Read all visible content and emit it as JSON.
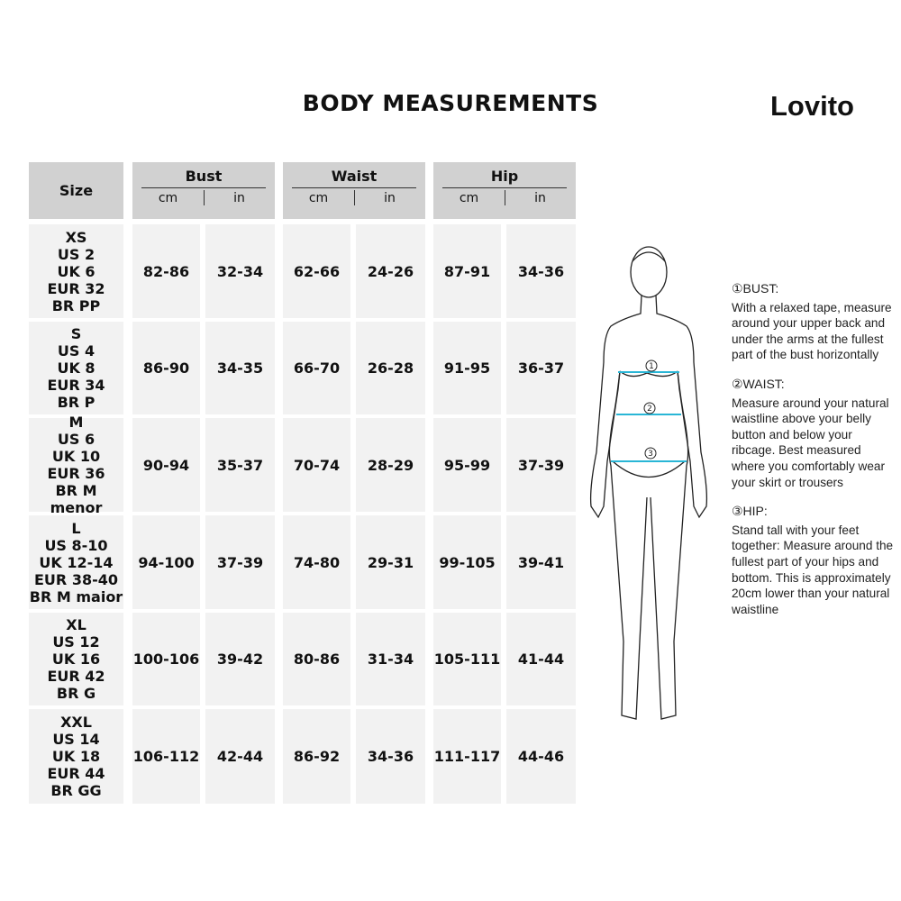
{
  "title": "BODY MEASUREMENTS",
  "brand": "Lovito",
  "headers": {
    "size": "Size",
    "groups": [
      "Bust",
      "Waist",
      "Hip"
    ],
    "units": [
      "cm",
      "in"
    ]
  },
  "rows": [
    {
      "size": [
        "XS",
        "US 2",
        "UK 6",
        "EUR 32",
        "BR PP"
      ],
      "values": [
        "82-86",
        "32-34",
        "62-66",
        "24-26",
        "87-91",
        "34-36"
      ]
    },
    {
      "size": [
        "S",
        "US 4",
        "UK 8",
        "EUR 34",
        "BR P"
      ],
      "values": [
        "86-90",
        "34-35",
        "66-70",
        "26-28",
        "91-95",
        "36-37"
      ]
    },
    {
      "size": [
        "M",
        "US 6",
        "UK 10",
        "EUR 36",
        "BR M menor"
      ],
      "values": [
        "90-94",
        "35-37",
        "70-74",
        "28-29",
        "95-99",
        "37-39"
      ]
    },
    {
      "size": [
        "L",
        "US 8-10",
        "UK 12-14",
        "EUR 38-40",
        "BR M maior"
      ],
      "values": [
        "94-100",
        "37-39",
        "74-80",
        "29-31",
        "99-105",
        "39-41"
      ]
    },
    {
      "size": [
        "XL",
        "US 12",
        "UK 16",
        "EUR 42",
        "BR G"
      ],
      "values": [
        "100-106",
        "39-42",
        "80-86",
        "31-34",
        "105-111",
        "41-44"
      ]
    },
    {
      "size": [
        "XXL",
        "US 14",
        "UK 18",
        "EUR 44",
        "BR GG"
      ],
      "values": [
        "106-112",
        "42-44",
        "86-92",
        "34-36",
        "111-117",
        "44-46"
      ]
    }
  ],
  "figure": {
    "markers": [
      "1",
      "2",
      "3"
    ],
    "tape_color": "#29b6d6"
  },
  "notes": [
    {
      "heading": "①BUST:",
      "text": "With a relaxed tape, measure around your upper back and under the arms at the fullest part of the bust horizontally"
    },
    {
      "heading": "②WAIST:",
      "text": "Measure around your natural waistline above your belly button and below your ribcage. Best measured where you comfortably wear your skirt or trousers"
    },
    {
      "heading": "③HIP:",
      "text": "Stand tall with your feet together: Measure around the fullest part of your hips and bottom. This is approximately 20cm lower than your natural waistline"
    }
  ]
}
